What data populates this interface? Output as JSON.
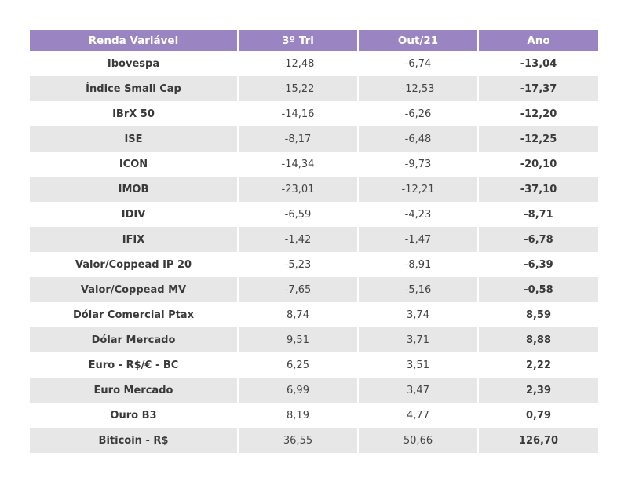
{
  "colors": {
    "header_bg": "#9a84c2",
    "stripe_bg": "#e7e7e7",
    "text": "#3a3a3a"
  },
  "table": {
    "headers": [
      "Renda Variável",
      "3º Tri",
      "Out/21",
      "Ano"
    ],
    "rows": [
      [
        "Ibovespa",
        "-12,48",
        "-6,74",
        "-13,04"
      ],
      [
        "Índice Small Cap",
        "-15,22",
        "-12,53",
        "-17,37"
      ],
      [
        "IBrX 50",
        "-14,16",
        "-6,26",
        "-12,20"
      ],
      [
        "ISE",
        "-8,17",
        "-6,48",
        "-12,25"
      ],
      [
        "ICON",
        "-14,34",
        "-9,73",
        "-20,10"
      ],
      [
        "IMOB",
        "-23,01",
        "-12,21",
        "-37,10"
      ],
      [
        "IDIV",
        "-6,59",
        "-4,23",
        "-8,71"
      ],
      [
        "IFIX",
        "-1,42",
        "-1,47",
        "-6,78"
      ],
      [
        "Valor/Coppead IP 20",
        "-5,23",
        "-8,91",
        "-6,39"
      ],
      [
        "Valor/Coppead MV",
        "-7,65",
        "-5,16",
        "-0,58"
      ],
      [
        "Dólar Comercial Ptax",
        "8,74",
        "3,74",
        "8,59"
      ],
      [
        "Dólar Mercado",
        "9,51",
        "3,71",
        "8,88"
      ],
      [
        "Euro - R$/€ - BC",
        "6,25",
        "3,51",
        "2,22"
      ],
      [
        "Euro Mercado",
        "6,99",
        "3,47",
        "2,39"
      ],
      [
        "Ouro B3",
        "8,19",
        "4,77",
        "0,79"
      ],
      [
        "Biticoin - R$",
        "36,55",
        "50,66",
        "126,70"
      ]
    ]
  }
}
